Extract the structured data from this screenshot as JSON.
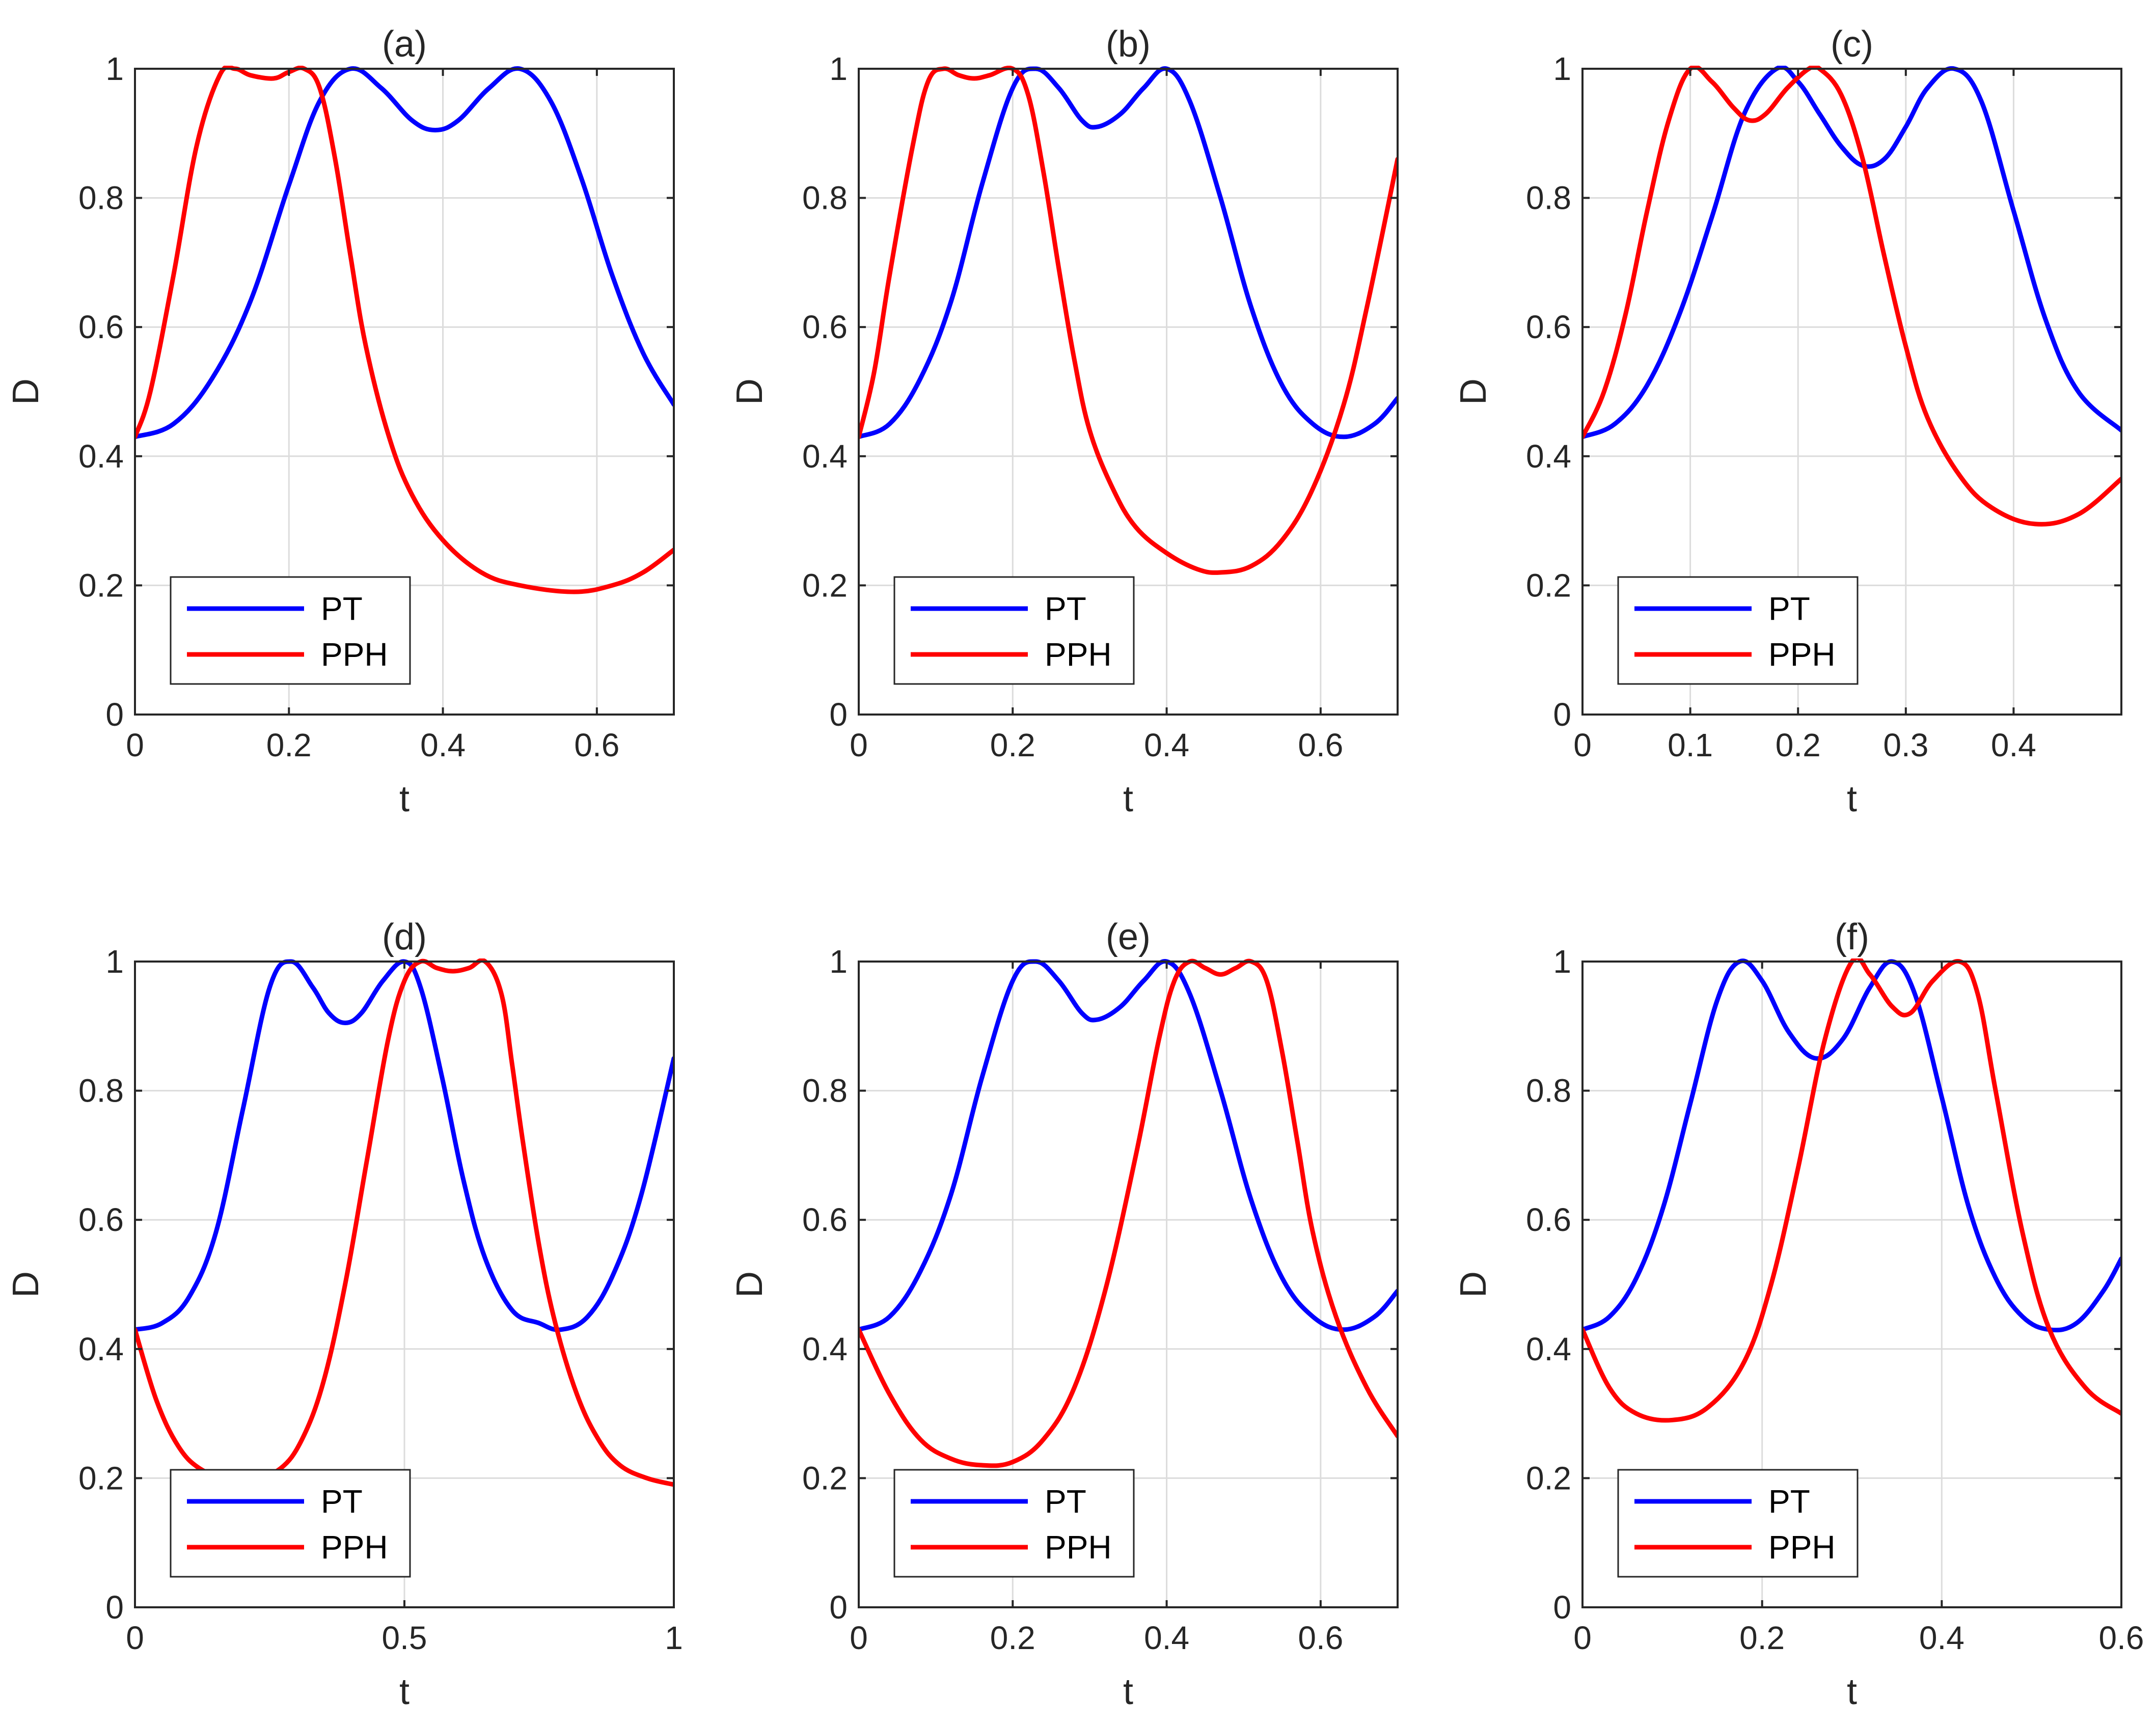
{
  "chart_data": [
    {
      "type": "line",
      "title": "(a)",
      "xlabel": "t",
      "ylabel": "D",
      "xlim": [
        0,
        0.7
      ],
      "ylim": [
        0,
        1
      ],
      "xticks": [
        0,
        0.2,
        0.4,
        0.6
      ],
      "xtick_labels": [
        "0",
        "0.2",
        "0.4",
        "0.6"
      ],
      "yticks": [
        0,
        0.2,
        0.4,
        0.6,
        0.8,
        1
      ],
      "ytick_labels": [
        "0",
        "0.2",
        "0.4",
        "0.6",
        "0.8",
        "1"
      ],
      "grid": true,
      "legend_position": "bottom-left",
      "series": [
        {
          "name": "PT",
          "color": "#0000ff",
          "x": [
            0,
            0.05,
            0.1,
            0.15,
            0.2,
            0.24,
            0.28,
            0.32,
            0.36,
            0.39,
            0.42,
            0.46,
            0.5,
            0.54,
            0.58,
            0.62,
            0.66,
            0.7
          ],
          "y": [
            0.43,
            0.45,
            0.52,
            0.64,
            0.82,
            0.95,
            1.0,
            0.97,
            0.92,
            0.905,
            0.92,
            0.97,
            1.0,
            0.95,
            0.83,
            0.68,
            0.56,
            0.48
          ]
        },
        {
          "name": "PPH",
          "color": "#ff0000",
          "x": [
            0,
            0.02,
            0.05,
            0.08,
            0.11,
            0.13,
            0.15,
            0.18,
            0.2,
            0.22,
            0.24,
            0.26,
            0.28,
            0.3,
            0.33,
            0.36,
            0.4,
            0.45,
            0.5,
            0.57,
            0.62,
            0.66,
            0.7
          ],
          "y": [
            0.43,
            0.5,
            0.68,
            0.88,
            0.99,
            1.0,
            0.99,
            0.985,
            0.995,
            1.0,
            0.97,
            0.86,
            0.71,
            0.57,
            0.43,
            0.34,
            0.27,
            0.22,
            0.2,
            0.19,
            0.2,
            0.22,
            0.255
          ]
        }
      ]
    },
    {
      "type": "line",
      "title": "(b)",
      "xlabel": "t",
      "ylabel": "D",
      "xlim": [
        0,
        0.7
      ],
      "ylim": [
        0,
        1
      ],
      "xticks": [
        0,
        0.2,
        0.4,
        0.6
      ],
      "xtick_labels": [
        "0",
        "0.2",
        "0.4",
        "0.6"
      ],
      "yticks": [
        0,
        0.2,
        0.4,
        0.6,
        0.8,
        1
      ],
      "ytick_labels": [
        "0",
        "0.2",
        "0.4",
        "0.6",
        "0.8",
        "1"
      ],
      "grid": true,
      "legend_position": "bottom-left",
      "series": [
        {
          "name": "PT",
          "color": "#0000ff",
          "x": [
            0,
            0.04,
            0.08,
            0.12,
            0.16,
            0.2,
            0.23,
            0.26,
            0.29,
            0.31,
            0.34,
            0.37,
            0.4,
            0.43,
            0.47,
            0.51,
            0.55,
            0.59,
            0.63,
            0.67,
            0.7
          ],
          "y": [
            0.43,
            0.45,
            0.52,
            0.64,
            0.82,
            0.97,
            1.0,
            0.97,
            0.92,
            0.91,
            0.93,
            0.97,
            1.0,
            0.95,
            0.8,
            0.63,
            0.51,
            0.45,
            0.43,
            0.45,
            0.49
          ]
        },
        {
          "name": "PPH",
          "color": "#ff0000",
          "x": [
            0,
            0.02,
            0.04,
            0.07,
            0.09,
            0.11,
            0.13,
            0.15,
            0.17,
            0.2,
            0.22,
            0.24,
            0.26,
            0.28,
            0.3,
            0.33,
            0.36,
            0.4,
            0.44,
            0.47,
            0.51,
            0.55,
            0.59,
            0.63,
            0.66,
            0.7
          ],
          "y": [
            0.43,
            0.53,
            0.68,
            0.88,
            0.98,
            1.0,
            0.99,
            0.985,
            0.99,
            1.0,
            0.96,
            0.84,
            0.69,
            0.55,
            0.44,
            0.35,
            0.29,
            0.25,
            0.225,
            0.22,
            0.23,
            0.27,
            0.35,
            0.48,
            0.63,
            0.86
          ]
        }
      ]
    },
    {
      "type": "line",
      "title": "(c)",
      "xlabel": "t",
      "ylabel": "D",
      "xlim": [
        0,
        0.5
      ],
      "ylim": [
        0,
        1
      ],
      "xticks": [
        0,
        0.1,
        0.2,
        0.3,
        0.4
      ],
      "xtick_labels": [
        "0",
        "0.1",
        "0.2",
        "0.3",
        "0.4"
      ],
      "yticks": [
        0,
        0.2,
        0.4,
        0.6,
        0.8,
        1
      ],
      "ytick_labels": [
        "0",
        "0.2",
        "0.4",
        "0.6",
        "0.8",
        "1"
      ],
      "grid": true,
      "legend_position": "bottom-left",
      "series": [
        {
          "name": "PT",
          "color": "#0000ff",
          "x": [
            0,
            0.03,
            0.06,
            0.09,
            0.12,
            0.15,
            0.18,
            0.2,
            0.22,
            0.24,
            0.26,
            0.28,
            0.3,
            0.32,
            0.345,
            0.37,
            0.4,
            0.43,
            0.46,
            0.5
          ],
          "y": [
            0.43,
            0.45,
            0.51,
            0.62,
            0.77,
            0.93,
            1.0,
            0.98,
            0.93,
            0.88,
            0.85,
            0.86,
            0.91,
            0.97,
            1.0,
            0.95,
            0.78,
            0.61,
            0.5,
            0.44
          ]
        },
        {
          "name": "PPH",
          "color": "#ff0000",
          "x": [
            0,
            0.02,
            0.04,
            0.06,
            0.08,
            0.1,
            0.12,
            0.14,
            0.155,
            0.17,
            0.19,
            0.21,
            0.22,
            0.24,
            0.26,
            0.28,
            0.3,
            0.32,
            0.35,
            0.38,
            0.42,
            0.46,
            0.5
          ],
          "y": [
            0.43,
            0.5,
            0.62,
            0.78,
            0.92,
            1.0,
            0.98,
            0.94,
            0.92,
            0.93,
            0.97,
            1.0,
            1.0,
            0.96,
            0.86,
            0.71,
            0.57,
            0.46,
            0.37,
            0.32,
            0.295,
            0.31,
            0.365
          ]
        }
      ]
    },
    {
      "type": "line",
      "title": "(d)",
      "xlabel": "t",
      "ylabel": "D",
      "xlim": [
        0,
        1
      ],
      "ylim": [
        0,
        1
      ],
      "xticks": [
        0,
        0.5,
        1
      ],
      "xtick_labels": [
        "0",
        "0.5",
        "1"
      ],
      "yticks": [
        0,
        0.2,
        0.4,
        0.6,
        0.8,
        1
      ],
      "ytick_labels": [
        "0",
        "0.2",
        "0.4",
        "0.6",
        "0.8",
        "1"
      ],
      "grid": true,
      "legend_position": "bottom-left",
      "series": [
        {
          "name": "PT",
          "color": "#0000ff",
          "x": [
            0,
            0.05,
            0.1,
            0.15,
            0.2,
            0.25,
            0.29,
            0.33,
            0.36,
            0.39,
            0.42,
            0.46,
            0.5,
            0.53,
            0.57,
            0.61,
            0.65,
            0.7,
            0.75,
            0.79,
            0.84,
            0.89,
            0.94,
            1.0
          ],
          "y": [
            0.43,
            0.44,
            0.48,
            0.58,
            0.77,
            0.96,
            1.0,
            0.96,
            0.92,
            0.905,
            0.92,
            0.97,
            1.0,
            0.96,
            0.82,
            0.66,
            0.54,
            0.46,
            0.44,
            0.43,
            0.45,
            0.52,
            0.64,
            0.85
          ]
        },
        {
          "name": "PPH",
          "color": "#ff0000",
          "x": [
            0,
            0.04,
            0.08,
            0.12,
            0.17,
            0.22,
            0.27,
            0.31,
            0.35,
            0.39,
            0.43,
            0.47,
            0.5,
            0.53,
            0.56,
            0.59,
            0.62,
            0.65,
            0.68,
            0.7,
            0.72,
            0.75,
            0.78,
            0.82,
            0.86,
            0.9,
            0.95,
            1.0
          ],
          "y": [
            0.43,
            0.32,
            0.25,
            0.215,
            0.2,
            0.2,
            0.215,
            0.26,
            0.35,
            0.5,
            0.69,
            0.88,
            0.97,
            1.0,
            0.99,
            0.985,
            0.99,
            1.0,
            0.95,
            0.84,
            0.72,
            0.56,
            0.44,
            0.33,
            0.26,
            0.22,
            0.2,
            0.19
          ]
        }
      ]
    },
    {
      "type": "line",
      "title": "(e)",
      "xlabel": "t",
      "ylabel": "D",
      "xlim": [
        0,
        0.7
      ],
      "ylim": [
        0,
        1
      ],
      "xticks": [
        0,
        0.2,
        0.4,
        0.6
      ],
      "xtick_labels": [
        "0",
        "0.2",
        "0.4",
        "0.6"
      ],
      "yticks": [
        0,
        0.2,
        0.4,
        0.6,
        0.8,
        1
      ],
      "ytick_labels": [
        "0",
        "0.2",
        "0.4",
        "0.6",
        "0.8",
        "1"
      ],
      "grid": true,
      "legend_position": "bottom-left",
      "series": [
        {
          "name": "PT",
          "color": "#0000ff",
          "x": [
            0,
            0.04,
            0.08,
            0.12,
            0.16,
            0.2,
            0.23,
            0.26,
            0.29,
            0.31,
            0.34,
            0.37,
            0.4,
            0.43,
            0.47,
            0.51,
            0.55,
            0.59,
            0.63,
            0.67,
            0.7
          ],
          "y": [
            0.43,
            0.45,
            0.52,
            0.64,
            0.82,
            0.97,
            1.0,
            0.97,
            0.92,
            0.91,
            0.93,
            0.97,
            1.0,
            0.95,
            0.8,
            0.63,
            0.51,
            0.45,
            0.43,
            0.45,
            0.49
          ]
        },
        {
          "name": "PPH",
          "color": "#ff0000",
          "x": [
            0,
            0.04,
            0.08,
            0.12,
            0.16,
            0.2,
            0.24,
            0.28,
            0.32,
            0.36,
            0.39,
            0.41,
            0.43,
            0.45,
            0.47,
            0.49,
            0.51,
            0.53,
            0.55,
            0.57,
            0.59,
            0.62,
            0.66,
            0.7
          ],
          "y": [
            0.43,
            0.33,
            0.26,
            0.23,
            0.22,
            0.225,
            0.26,
            0.34,
            0.49,
            0.7,
            0.88,
            0.97,
            1.0,
            0.99,
            0.98,
            0.99,
            1.0,
            0.97,
            0.86,
            0.72,
            0.58,
            0.45,
            0.34,
            0.265
          ]
        }
      ]
    },
    {
      "type": "line",
      "title": "(f)",
      "xlabel": "t",
      "ylabel": "D",
      "xlim": [
        0,
        0.6
      ],
      "ylim": [
        0,
        1
      ],
      "xticks": [
        0,
        0.2,
        0.4,
        0.6
      ],
      "xtick_labels": [
        "0",
        "0.2",
        "0.4",
        "0.6"
      ],
      "yticks": [
        0,
        0.2,
        0.4,
        0.6,
        0.8,
        1
      ],
      "ytick_labels": [
        "0",
        "0.2",
        "0.4",
        "0.6",
        "0.8",
        "1"
      ],
      "grid": true,
      "legend_position": "bottom-left",
      "series": [
        {
          "name": "PT",
          "color": "#0000ff",
          "x": [
            0,
            0.03,
            0.06,
            0.09,
            0.12,
            0.15,
            0.175,
            0.2,
            0.23,
            0.26,
            0.29,
            0.32,
            0.345,
            0.37,
            0.4,
            0.43,
            0.46,
            0.49,
            0.52,
            0.55,
            0.58,
            0.6
          ],
          "y": [
            0.43,
            0.45,
            0.51,
            0.62,
            0.78,
            0.94,
            1.0,
            0.97,
            0.89,
            0.85,
            0.88,
            0.96,
            1.0,
            0.95,
            0.79,
            0.62,
            0.51,
            0.45,
            0.43,
            0.44,
            0.49,
            0.54
          ]
        },
        {
          "name": "PPH",
          "color": "#ff0000",
          "x": [
            0,
            0.03,
            0.06,
            0.1,
            0.14,
            0.18,
            0.21,
            0.24,
            0.27,
            0.3,
            0.32,
            0.345,
            0.365,
            0.39,
            0.42,
            0.44,
            0.46,
            0.49,
            0.52,
            0.56,
            0.6
          ],
          "y": [
            0.43,
            0.34,
            0.3,
            0.29,
            0.31,
            0.38,
            0.5,
            0.68,
            0.88,
            1.0,
            0.98,
            0.93,
            0.92,
            0.97,
            1.0,
            0.95,
            0.8,
            0.58,
            0.43,
            0.34,
            0.3
          ]
        }
      ]
    }
  ]
}
